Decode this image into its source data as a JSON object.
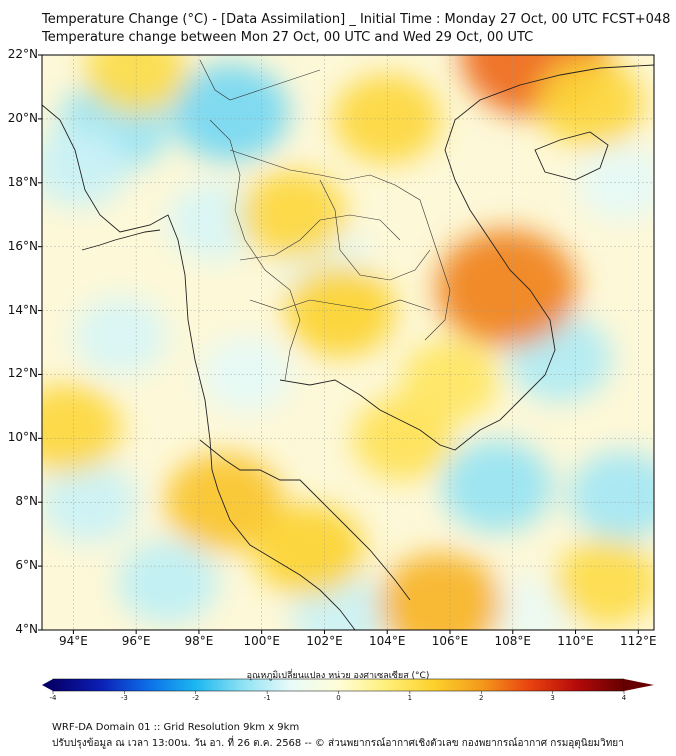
{
  "header": {
    "title_line1": "Temperature Change (°C) - [Data Assimilation] _ Initial Time : Monday 27 Oct, 00 UTC FCST+048",
    "title_line2": "Temperature change between Mon 27 Oct, 00 UTC and Wed 29 Oct, 00 UTC"
  },
  "map": {
    "lat_labels": [
      "22°N",
      "20°N",
      "18°N",
      "16°N",
      "14°N",
      "12°N",
      "10°N",
      "8°N",
      "6°N",
      "4°N"
    ],
    "lon_labels": [
      "94°E",
      "96°E",
      "98°E",
      "100°E",
      "102°E",
      "104°E",
      "106°E",
      "108°E",
      "110°E",
      "112°E"
    ],
    "lat_range": [
      4,
      22
    ],
    "lon_range": [
      93,
      112.5
    ],
    "field_base_color": "#fdf8d8",
    "anomalies": [
      {
        "lon": 95.3,
        "lat": 19.8,
        "value": -1.3
      },
      {
        "lon": 94.2,
        "lat": 18.5,
        "value": -0.9
      },
      {
        "lon": 99.0,
        "lat": 20.2,
        "value": -1.5
      },
      {
        "lon": 98.5,
        "lat": 16.8,
        "value": -0.8
      },
      {
        "lon": 102.0,
        "lat": 15.5,
        "value": -0.7
      },
      {
        "lon": 95.5,
        "lat": 13.2,
        "value": -0.8
      },
      {
        "lon": 99.5,
        "lat": 12.0,
        "value": -0.7
      },
      {
        "lon": 109.5,
        "lat": 12.5,
        "value": -1.1
      },
      {
        "lon": 107.5,
        "lat": 8.5,
        "value": -1.3
      },
      {
        "lon": 111.5,
        "lat": 8.2,
        "value": -1.2
      },
      {
        "lon": 94.5,
        "lat": 8.0,
        "value": -0.9
      },
      {
        "lon": 97.0,
        "lat": 5.5,
        "value": -1.0
      },
      {
        "lon": 102.5,
        "lat": 4.5,
        "value": -0.9
      },
      {
        "lon": 111.5,
        "lat": 18.0,
        "value": -0.7
      },
      {
        "lon": 108.5,
        "lat": 4.5,
        "value": -0.6
      },
      {
        "lon": 107.8,
        "lat": 14.7,
        "value": 2.2
      },
      {
        "lon": 108.7,
        "lat": 22.0,
        "value": 2.4
      },
      {
        "lon": 104.0,
        "lat": 20.0,
        "value": 1.2
      },
      {
        "lon": 101.0,
        "lat": 17.0,
        "value": 1.2
      },
      {
        "lon": 102.5,
        "lat": 14.0,
        "value": 1.3
      },
      {
        "lon": 105.7,
        "lat": 4.8,
        "value": 1.7
      },
      {
        "lon": 98.8,
        "lat": 8.0,
        "value": 1.5
      },
      {
        "lon": 101.5,
        "lat": 6.5,
        "value": 1.3
      },
      {
        "lon": 93.8,
        "lat": 10.3,
        "value": 1.2
      },
      {
        "lon": 96.0,
        "lat": 21.5,
        "value": 1.1
      },
      {
        "lon": 104.5,
        "lat": 10.0,
        "value": 1.0
      },
      {
        "lon": 110.5,
        "lat": 20.5,
        "value": 1.2
      },
      {
        "lon": 111.0,
        "lat": 5.5,
        "value": 1.1
      },
      {
        "lon": 106.0,
        "lat": 11.8,
        "value": 0.9
      }
    ]
  },
  "colorbar": {
    "label": "อุณหภูมิเปลี่ยนแปลง หน่วย องศาเซลเซียส (°C)",
    "ticks": [
      "-4",
      "-3",
      "-2",
      "-1",
      "0",
      "1",
      "2",
      "3",
      "4"
    ],
    "range": [
      -4,
      4
    ],
    "stops": [
      "#06006b",
      "#0b1fb5",
      "#0d6ee8",
      "#1bb7f0",
      "#8fe2f4",
      "#e9fbf8",
      "#fffdd8",
      "#fff07a",
      "#fcd12b",
      "#f39a1c",
      "#e9440f",
      "#b50a0a",
      "#660000"
    ]
  },
  "footer": {
    "line1": "WRF-DA Domain 01 :: Grid Resolution 9km x 9km",
    "line2": "ปรับปรุงข้อมูล ณ เวลา 13:00น. วัน อา. ที่ 26 ต.ค. 2568 -- © ส่วนพยากรณ์อากาศเชิงตัวเลข กองพยากรณ์อากาศ กรมอุตุนิยมวิทยา"
  }
}
